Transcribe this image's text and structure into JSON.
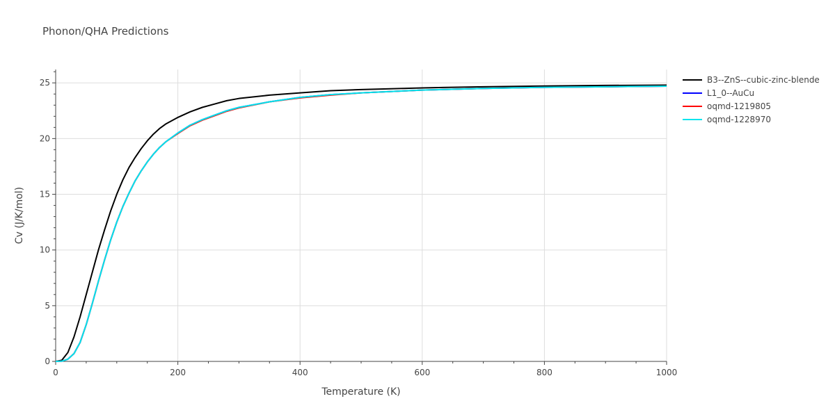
{
  "chart_data": {
    "type": "line",
    "title": "Phonon/QHA Predictions",
    "xlabel": "Temperature (K)",
    "ylabel": "Cv (J/K/mol)",
    "xlim": [
      0,
      1000
    ],
    "ylim": [
      0,
      26.2
    ],
    "xticks": [
      0,
      200,
      400,
      600,
      800,
      1000
    ],
    "yticks": [
      0,
      5,
      10,
      15,
      20,
      25
    ],
    "grid": true,
    "legend_position": "top-right",
    "series": [
      {
        "name": "B3--ZnS--cubic-zinc-blende",
        "color": "#000000",
        "x": [
          0,
          10,
          20,
          30,
          40,
          50,
          60,
          70,
          80,
          90,
          100,
          110,
          120,
          130,
          140,
          150,
          160,
          170,
          180,
          200,
          220,
          240,
          260,
          280,
          300,
          350,
          400,
          450,
          500,
          600,
          700,
          800,
          900,
          1000
        ],
        "y": [
          0,
          0.1,
          0.8,
          2.2,
          4.0,
          6.0,
          8.0,
          10.0,
          11.8,
          13.5,
          15.0,
          16.3,
          17.4,
          18.3,
          19.1,
          19.8,
          20.4,
          20.9,
          21.3,
          21.9,
          22.4,
          22.8,
          23.1,
          23.4,
          23.6,
          23.9,
          24.1,
          24.3,
          24.4,
          24.55,
          24.65,
          24.72,
          24.77,
          24.8
        ]
      },
      {
        "name": "L1_0--AuCu",
        "color": "#0000ff",
        "x": [
          0,
          10,
          20,
          30,
          40,
          50,
          60,
          70,
          80,
          90,
          100,
          110,
          120,
          130,
          140,
          150,
          160,
          170,
          180,
          200,
          220,
          240,
          260,
          280,
          300,
          350,
          400,
          450,
          500,
          600,
          700,
          800,
          900,
          1000
        ],
        "y": [
          0,
          0.02,
          0.2,
          0.7,
          1.7,
          3.3,
          5.2,
          7.2,
          9.1,
          10.9,
          12.5,
          13.9,
          15.1,
          16.2,
          17.1,
          17.9,
          18.6,
          19.2,
          19.7,
          20.5,
          21.2,
          21.7,
          22.1,
          22.5,
          22.8,
          23.3,
          23.7,
          23.95,
          24.1,
          24.35,
          24.5,
          24.6,
          24.65,
          24.7
        ]
      },
      {
        "name": "oqmd-1219805",
        "color": "#ff0000",
        "x": [
          0,
          10,
          20,
          30,
          40,
          50,
          60,
          70,
          80,
          90,
          100,
          110,
          120,
          130,
          140,
          150,
          160,
          170,
          180,
          200,
          220,
          240,
          260,
          280,
          300,
          350,
          400,
          450,
          500,
          600,
          700,
          800,
          900,
          1000
        ],
        "y": [
          0,
          0.02,
          0.2,
          0.7,
          1.7,
          3.3,
          5.2,
          7.2,
          9.1,
          10.9,
          12.5,
          13.9,
          15.1,
          16.2,
          17.1,
          17.9,
          18.6,
          19.2,
          19.7,
          20.45,
          21.15,
          21.65,
          22.05,
          22.45,
          22.75,
          23.3,
          23.65,
          23.9,
          24.1,
          24.35,
          24.5,
          24.6,
          24.65,
          24.7
        ]
      },
      {
        "name": "oqmd-1228970",
        "color": "#00e5ee",
        "x": [
          0,
          10,
          20,
          30,
          40,
          50,
          60,
          70,
          80,
          90,
          100,
          110,
          120,
          130,
          140,
          150,
          160,
          170,
          180,
          200,
          220,
          240,
          260,
          280,
          300,
          350,
          400,
          450,
          500,
          600,
          700,
          800,
          900,
          1000
        ],
        "y": [
          0,
          0.02,
          0.2,
          0.7,
          1.7,
          3.3,
          5.2,
          7.2,
          9.1,
          10.9,
          12.5,
          13.9,
          15.1,
          16.2,
          17.1,
          17.9,
          18.6,
          19.2,
          19.7,
          20.5,
          21.2,
          21.7,
          22.1,
          22.5,
          22.8,
          23.3,
          23.7,
          23.95,
          24.1,
          24.35,
          24.5,
          24.6,
          24.65,
          24.7
        ]
      }
    ]
  }
}
